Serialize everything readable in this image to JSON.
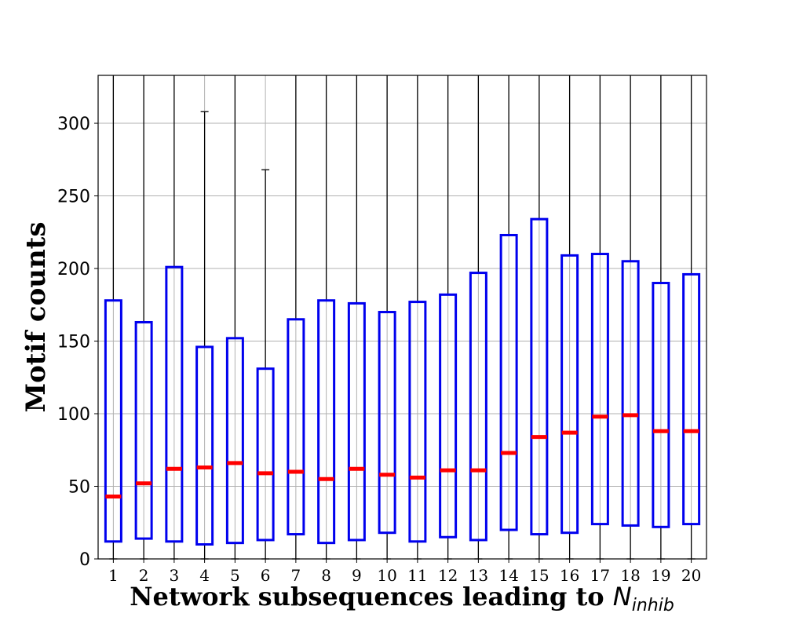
{
  "chart_data": {
    "type": "box",
    "title": "",
    "xlabel_text": "Network subsequences leading to ",
    "xlabel_symbol": "N",
    "xlabel_subscript": "inhib",
    "ylabel": "Motif counts",
    "ylim": [
      0,
      333
    ],
    "yticks": [
      0,
      50,
      100,
      150,
      200,
      250,
      300
    ],
    "grid": true,
    "colors": {
      "box": "#0000ee",
      "median": "#ff0000",
      "whisker": "#000000",
      "grid": "#b0b0b0"
    },
    "categories": [
      "1",
      "2",
      "3",
      "4",
      "5",
      "6",
      "7",
      "8",
      "9",
      "10",
      "11",
      "12",
      "13",
      "14",
      "15",
      "16",
      "17",
      "18",
      "19",
      "20"
    ],
    "boxes": [
      {
        "whislo": 0,
        "q1": 12,
        "med": 43,
        "q3": 178,
        "whishi": 333
      },
      {
        "whislo": 0,
        "q1": 14,
        "med": 52,
        "q3": 163,
        "whishi": 333
      },
      {
        "whislo": 0,
        "q1": 12,
        "med": 62,
        "q3": 201,
        "whishi": 333
      },
      {
        "whislo": 0,
        "q1": 10,
        "med": 63,
        "q3": 146,
        "whishi": 308
      },
      {
        "whislo": 0,
        "q1": 11,
        "med": 66,
        "q3": 152,
        "whishi": 333
      },
      {
        "whislo": 0,
        "q1": 13,
        "med": 59,
        "q3": 131,
        "whishi": 268
      },
      {
        "whislo": 0,
        "q1": 17,
        "med": 60,
        "q3": 165,
        "whishi": 333
      },
      {
        "whislo": 0,
        "q1": 11,
        "med": 55,
        "q3": 178,
        "whishi": 333
      },
      {
        "whislo": 0,
        "q1": 13,
        "med": 62,
        "q3": 176,
        "whishi": 333
      },
      {
        "whislo": 0,
        "q1": 18,
        "med": 58,
        "q3": 170,
        "whishi": 333
      },
      {
        "whislo": 0,
        "q1": 12,
        "med": 56,
        "q3": 177,
        "whishi": 333
      },
      {
        "whislo": 0,
        "q1": 15,
        "med": 61,
        "q3": 182,
        "whishi": 333
      },
      {
        "whislo": 0,
        "q1": 13,
        "med": 61,
        "q3": 197,
        "whishi": 333
      },
      {
        "whislo": 0,
        "q1": 20,
        "med": 73,
        "q3": 223,
        "whishi": 333
      },
      {
        "whislo": 0,
        "q1": 17,
        "med": 84,
        "q3": 234,
        "whishi": 333
      },
      {
        "whislo": 0,
        "q1": 18,
        "med": 87,
        "q3": 209,
        "whishi": 333
      },
      {
        "whislo": 0,
        "q1": 24,
        "med": 98,
        "q3": 210,
        "whishi": 333
      },
      {
        "whislo": 0,
        "q1": 23,
        "med": 99,
        "q3": 205,
        "whishi": 333
      },
      {
        "whislo": 0,
        "q1": 22,
        "med": 88,
        "q3": 190,
        "whishi": 333
      },
      {
        "whislo": 0,
        "q1": 24,
        "med": 88,
        "q3": 196,
        "whishi": 333
      }
    ]
  }
}
